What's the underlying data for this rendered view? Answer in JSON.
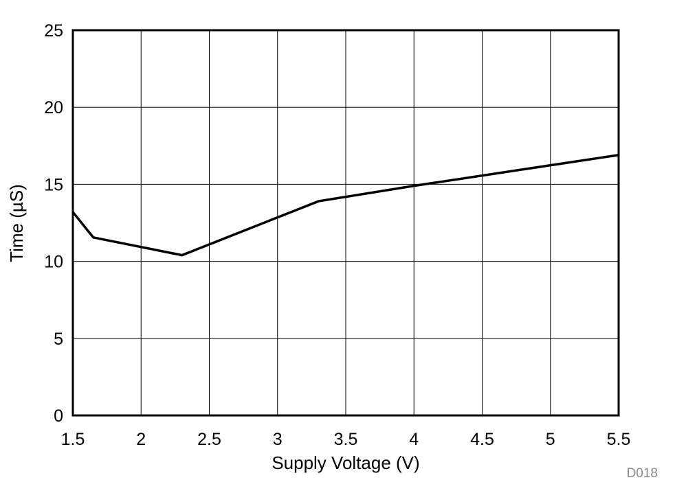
{
  "chart_data": {
    "type": "line",
    "title": "",
    "xlabel": "Supply Voltage (V)",
    "ylabel": "Time (µS)",
    "xlim": [
      1.5,
      5.5
    ],
    "ylim": [
      0,
      25
    ],
    "x_ticks": [
      "1.5",
      "2",
      "2.5",
      "3",
      "3.5",
      "4",
      "4.5",
      "5",
      "5.5"
    ],
    "y_ticks": [
      "0",
      "5",
      "10",
      "15",
      "20",
      "25"
    ],
    "grid": true,
    "legend": null,
    "series": [
      {
        "name": "Time",
        "color": "#000000",
        "x": [
          1.5,
          1.65,
          2.3,
          3.3,
          4.0,
          5.5
        ],
        "y": [
          13.2,
          11.55,
          10.4,
          13.9,
          14.9,
          16.9
        ]
      }
    ],
    "annotation": "D018"
  }
}
